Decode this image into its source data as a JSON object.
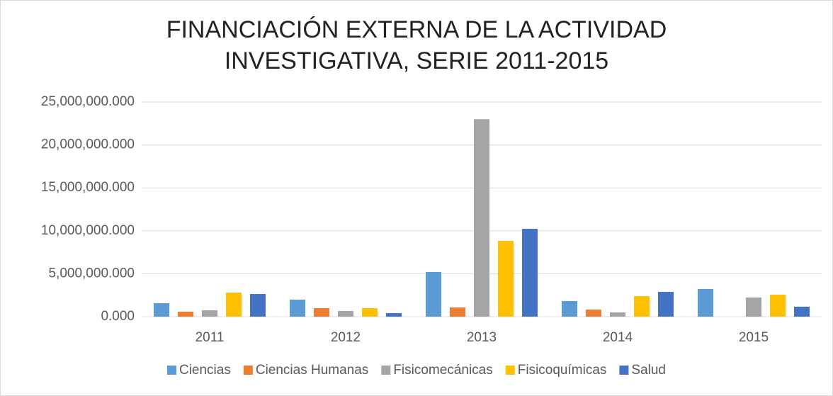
{
  "chart_data": {
    "type": "bar",
    "title": "FINANCIACIÓN EXTERNA DE LA ACTIVIDAD INVESTIGATIVA, SERIE 2011-2015",
    "categories": [
      "2011",
      "2012",
      "2013",
      "2014",
      "2015"
    ],
    "series": [
      {
        "name": "Ciencias",
        "color": "#5b9bd5",
        "values": [
          1570000000,
          1980000000,
          5200000000,
          1820000000,
          3220000000
        ]
      },
      {
        "name": "Ciencias Humanas",
        "color": "#ed7d31",
        "values": [
          580000000,
          990000000,
          1070000000,
          830000000,
          null
        ]
      },
      {
        "name": "Fisicomecánicas",
        "color": "#a5a5a5",
        "values": [
          740000000,
          660000000,
          23000000000,
          500000000,
          2230000000
        ]
      },
      {
        "name": "Fisicoquímicas",
        "color": "#ffc000",
        "values": [
          2800000000,
          990000000,
          8830000000,
          2390000000,
          2560000000
        ]
      },
      {
        "name": "Salud",
        "color": "#4472c4",
        "values": [
          2640000000,
          410000000,
          10230000000,
          2890000000,
          1160000000
        ]
      }
    ],
    "ylim": [
      0,
      25000000000
    ],
    "yticks": [
      {
        "value": 0,
        "label": "0.000"
      },
      {
        "value": 5000000000,
        "label": "5,000,000.000"
      },
      {
        "value": 10000000000,
        "label": "10,000,000.000"
      },
      {
        "value": 15000000000,
        "label": "15,000,000.000"
      },
      {
        "value": 20000000000,
        "label": "20,000,000.000"
      },
      {
        "value": 25000000000,
        "label": "25,000,000.000"
      }
    ],
    "grid": true,
    "legend": "bottom"
  }
}
